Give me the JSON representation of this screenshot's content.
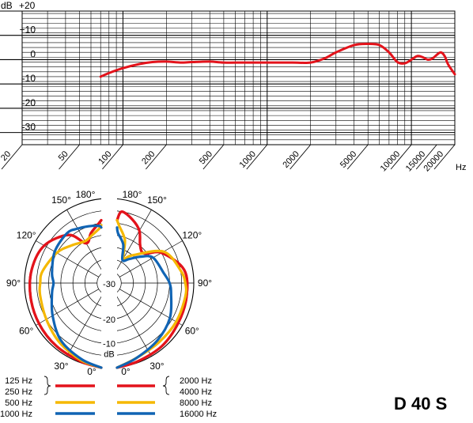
{
  "chart_data": [
    {
      "type": "line",
      "kind": "frequency-response",
      "x_scale": "log",
      "xlim": [
        20,
        20000
      ],
      "ylim": [
        -35,
        20
      ],
      "xlabel": "Hz",
      "ylabel": "dB",
      "x_ticks": [
        20,
        50,
        100,
        200,
        500,
        1000,
        2000,
        5000,
        10000,
        15000,
        20000
      ],
      "x_tick_labels": [
        "20",
        "50",
        "100",
        "200",
        "500",
        "1000",
        "2000",
        "5000",
        "10000",
        "15000",
        "20000"
      ],
      "y_ticks": [
        20,
        10,
        0,
        -10,
        -20,
        -30
      ],
      "y_tick_labels": [
        "+20",
        "+10",
        "0",
        "-10",
        "-20",
        "-30"
      ],
      "grid": true,
      "series": [
        {
          "color": "#e3131b",
          "x": [
            70,
            80,
            100,
            130,
            160,
            200,
            250,
            300,
            400,
            500,
            700,
            1000,
            1500,
            2000,
            2500,
            3000,
            4000,
            5000,
            6000,
            7000,
            8000,
            9000,
            10000,
            11000,
            12000,
            13000,
            14000,
            15000,
            16000,
            17000,
            18000,
            20000
          ],
          "y": [
            -7,
            -5.5,
            -3.5,
            -1.8,
            -1,
            -0.8,
            -1.2,
            -1,
            -0.8,
            -1.2,
            -1.2,
            -1.2,
            -1.2,
            -1.2,
            0.5,
            3,
            6,
            6.5,
            6,
            3,
            -1,
            -1.5,
            0,
            1.5,
            1,
            0,
            0.5,
            2,
            3,
            1.5,
            -2,
            -6
          ]
        }
      ]
    },
    {
      "type": "polar",
      "kind": "polar-pattern",
      "angle_labels_left": [
        "180°",
        "150°",
        "120°",
        "90°",
        "60°",
        "30°",
        "0°"
      ],
      "angle_labels_right": [
        "180°",
        "150°",
        "120°",
        "90°",
        "60°",
        "30°",
        "0°"
      ],
      "radial_labels": [
        "-30",
        "-20",
        "-10"
      ],
      "radial_unit": "dB",
      "rlim": [
        -35,
        0
      ],
      "series": [
        {
          "name": "125 Hz",
          "color": "#e3131b",
          "side": "left",
          "angles": [
            0,
            20,
            40,
            60,
            80,
            100,
            120,
            140,
            150,
            160,
            170,
            180
          ],
          "db": [
            0,
            -0.5,
            -1,
            -1.5,
            -2,
            -2.5,
            -4,
            -9,
            -16,
            -13,
            -10,
            -9
          ]
        },
        {
          "name": "250 Hz",
          "color": "#e3131b",
          "side": "left",
          "angles": [
            0,
            20,
            40,
            60,
            80,
            100,
            120,
            140,
            150,
            160,
            170,
            180
          ],
          "db": [
            0,
            -0.5,
            -1,
            -1.5,
            -2,
            -2.5,
            -4,
            -9,
            -16,
            -13,
            -10,
            -9
          ]
        },
        {
          "name": "500 Hz",
          "color": "#f5b800",
          "side": "left",
          "angles": [
            0,
            20,
            40,
            60,
            80,
            90,
            100,
            120,
            135,
            150,
            160,
            170,
            180
          ],
          "db": [
            0,
            -1,
            -3,
            -5,
            -6,
            -6.5,
            -7,
            -10,
            -13,
            -15,
            -14,
            -12,
            -11
          ]
        },
        {
          "name": "1000 Hz",
          "color": "#1064b4",
          "side": "left",
          "angles": [
            0,
            20,
            40,
            60,
            80,
            90,
            100,
            120,
            140,
            150,
            160,
            170,
            180
          ],
          "db": [
            0,
            -1.5,
            -4,
            -8,
            -11,
            -12,
            -11,
            -9,
            -8,
            -9,
            -10,
            -11,
            -12
          ]
        },
        {
          "name": "2000 Hz",
          "color": "#e3131b",
          "side": "right",
          "angles": [
            0,
            20,
            40,
            60,
            80,
            100,
            120,
            130,
            140,
            150,
            160,
            170,
            180
          ],
          "db": [
            0,
            -0.5,
            -1,
            -2,
            -2.5,
            -3.5,
            -10,
            -16,
            -15,
            -10,
            -7,
            -5,
            -9
          ]
        },
        {
          "name": "4000 Hz",
          "color": "#e3131b",
          "side": "right",
          "angles": [
            0,
            20,
            40,
            60,
            80,
            100,
            120,
            130,
            140,
            150,
            160,
            170,
            180
          ],
          "db": [
            0,
            -0.5,
            -1,
            -2,
            -2.5,
            -3.5,
            -10,
            -16,
            -15,
            -10,
            -7,
            -5,
            -9
          ]
        },
        {
          "name": "8000 Hz",
          "color": "#f5b800",
          "side": "right",
          "angles": [
            0,
            20,
            40,
            60,
            80,
            90,
            100,
            120,
            140,
            150,
            160,
            170,
            180
          ],
          "db": [
            0,
            -2,
            -3,
            -3,
            -3,
            -3.5,
            -5,
            -9,
            -20,
            -23,
            -16,
            -11,
            -9
          ]
        },
        {
          "name": "16000 Hz",
          "color": "#1064b4",
          "side": "right",
          "angles": [
            0,
            20,
            40,
            60,
            80,
            90,
            100,
            120,
            130,
            140,
            150,
            160,
            170,
            180
          ],
          "db": [
            0,
            -2,
            -4,
            -6,
            -9,
            -10,
            -12,
            -14,
            -18,
            -22,
            -24,
            -18,
            -14,
            -12
          ]
        }
      ]
    }
  ],
  "legend": {
    "left": [
      {
        "label": "125 Hz",
        "color": "#e3131b"
      },
      {
        "label": "250 Hz",
        "color": "#e3131b"
      },
      {
        "label": "500 Hz",
        "color": "#f5b800"
      },
      {
        "label": "1000 Hz",
        "color": "#1064b4"
      }
    ],
    "right": [
      {
        "label": "2000 Hz",
        "color": "#e3131b"
      },
      {
        "label": "4000 Hz",
        "color": "#e3131b"
      },
      {
        "label": "8000 Hz",
        "color": "#f5b800"
      },
      {
        "label": "16000 Hz",
        "color": "#1064b4"
      }
    ]
  },
  "model": "D 40 S"
}
